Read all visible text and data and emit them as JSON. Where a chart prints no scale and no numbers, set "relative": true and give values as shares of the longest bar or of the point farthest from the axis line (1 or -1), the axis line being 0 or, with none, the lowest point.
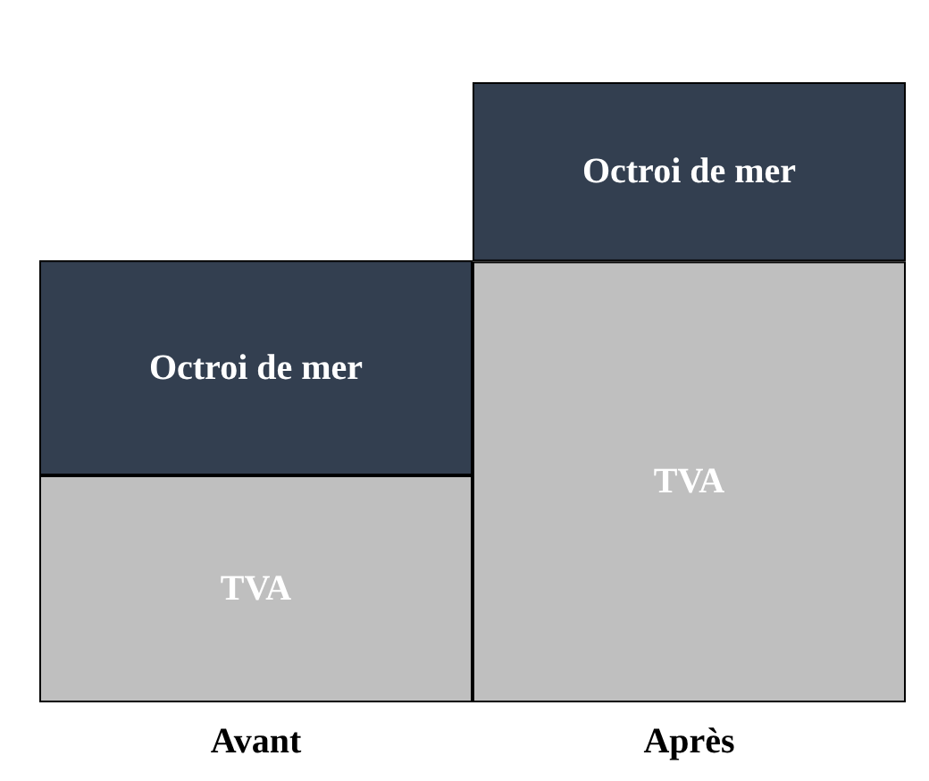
{
  "chart_data": {
    "type": "bar",
    "stacked": true,
    "relative": true,
    "categories": [
      "Avant",
      "Après"
    ],
    "series": [
      {
        "name": "TVA",
        "color": "#bfbfbf",
        "values": [
          0.366,
          0.711
        ]
      },
      {
        "name": "Octroi de mer",
        "color": "#333f50",
        "values": [
          0.347,
          0.289
        ]
      }
    ],
    "grid": false,
    "legend": false
  }
}
